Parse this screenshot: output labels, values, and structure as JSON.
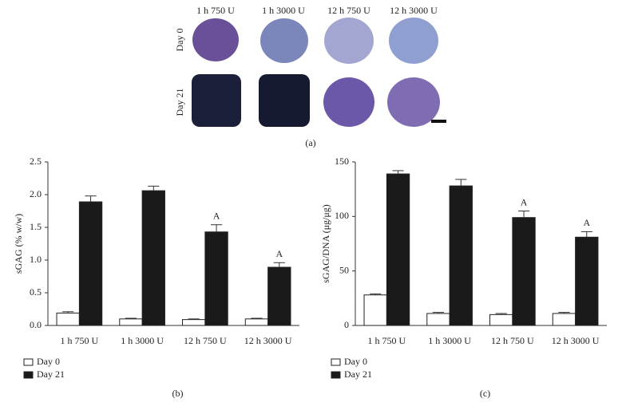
{
  "image_panel": {
    "columns": [
      "1 h 750 U",
      "1 h 3000 U",
      "12 h 750 U",
      "12 h 3000 U"
    ],
    "rows": [
      "Day 0",
      "Day 21"
    ],
    "label": "(a)"
  },
  "chart_data": [
    {
      "type": "bar",
      "label": "(b)",
      "y_label": "sGAG (% w/w)",
      "categories": [
        "1 h 750 U",
        "1 h 3000 U",
        "12 h 750 U",
        "12 h 3000 U"
      ],
      "series": [
        {
          "name": "Day 0",
          "color": "#ffffff",
          "values": [
            0.19,
            0.1,
            0.09,
            0.1
          ],
          "errors": [
            0.02,
            0.01,
            0.01,
            0.01
          ]
        },
        {
          "name": "Day 21",
          "color": "#1a1a1a",
          "values": [
            1.89,
            2.06,
            1.43,
            0.89
          ],
          "errors": [
            0.09,
            0.07,
            0.11,
            0.07
          ],
          "annotations": [
            null,
            null,
            "A",
            "A"
          ]
        }
      ],
      "ylim": [
        0,
        2.5
      ],
      "yticks": [
        {
          "value": 0,
          "label": "0.0"
        },
        0.5,
        {
          "value": 1,
          "label": "1.0"
        },
        1.5,
        {
          "value": 2,
          "label": "2.0"
        },
        2.5
      ],
      "legend": "bottom-left"
    },
    {
      "type": "bar",
      "label": "(c)",
      "y_label": "sGAG/DNA (μg/μg)",
      "categories": [
        "1 h 750 U",
        "1 h 3000 U",
        "12 h 750 U",
        "12 h 3000 U"
      ],
      "series": [
        {
          "name": "Day 0",
          "color": "#ffffff",
          "values": [
            28,
            11,
            10,
            11
          ],
          "errors": [
            1,
            1,
            1,
            1
          ]
        },
        {
          "name": "Day 21",
          "color": "#1a1a1a",
          "values": [
            139,
            128,
            99,
            81
          ],
          "errors": [
            3,
            6,
            6,
            5
          ],
          "annotations": [
            null,
            null,
            "A",
            "A"
          ]
        }
      ],
      "ylim": [
        0,
        150
      ],
      "yticks": [
        0,
        50,
        100,
        150
      ],
      "legend": "bottom-left"
    }
  ]
}
